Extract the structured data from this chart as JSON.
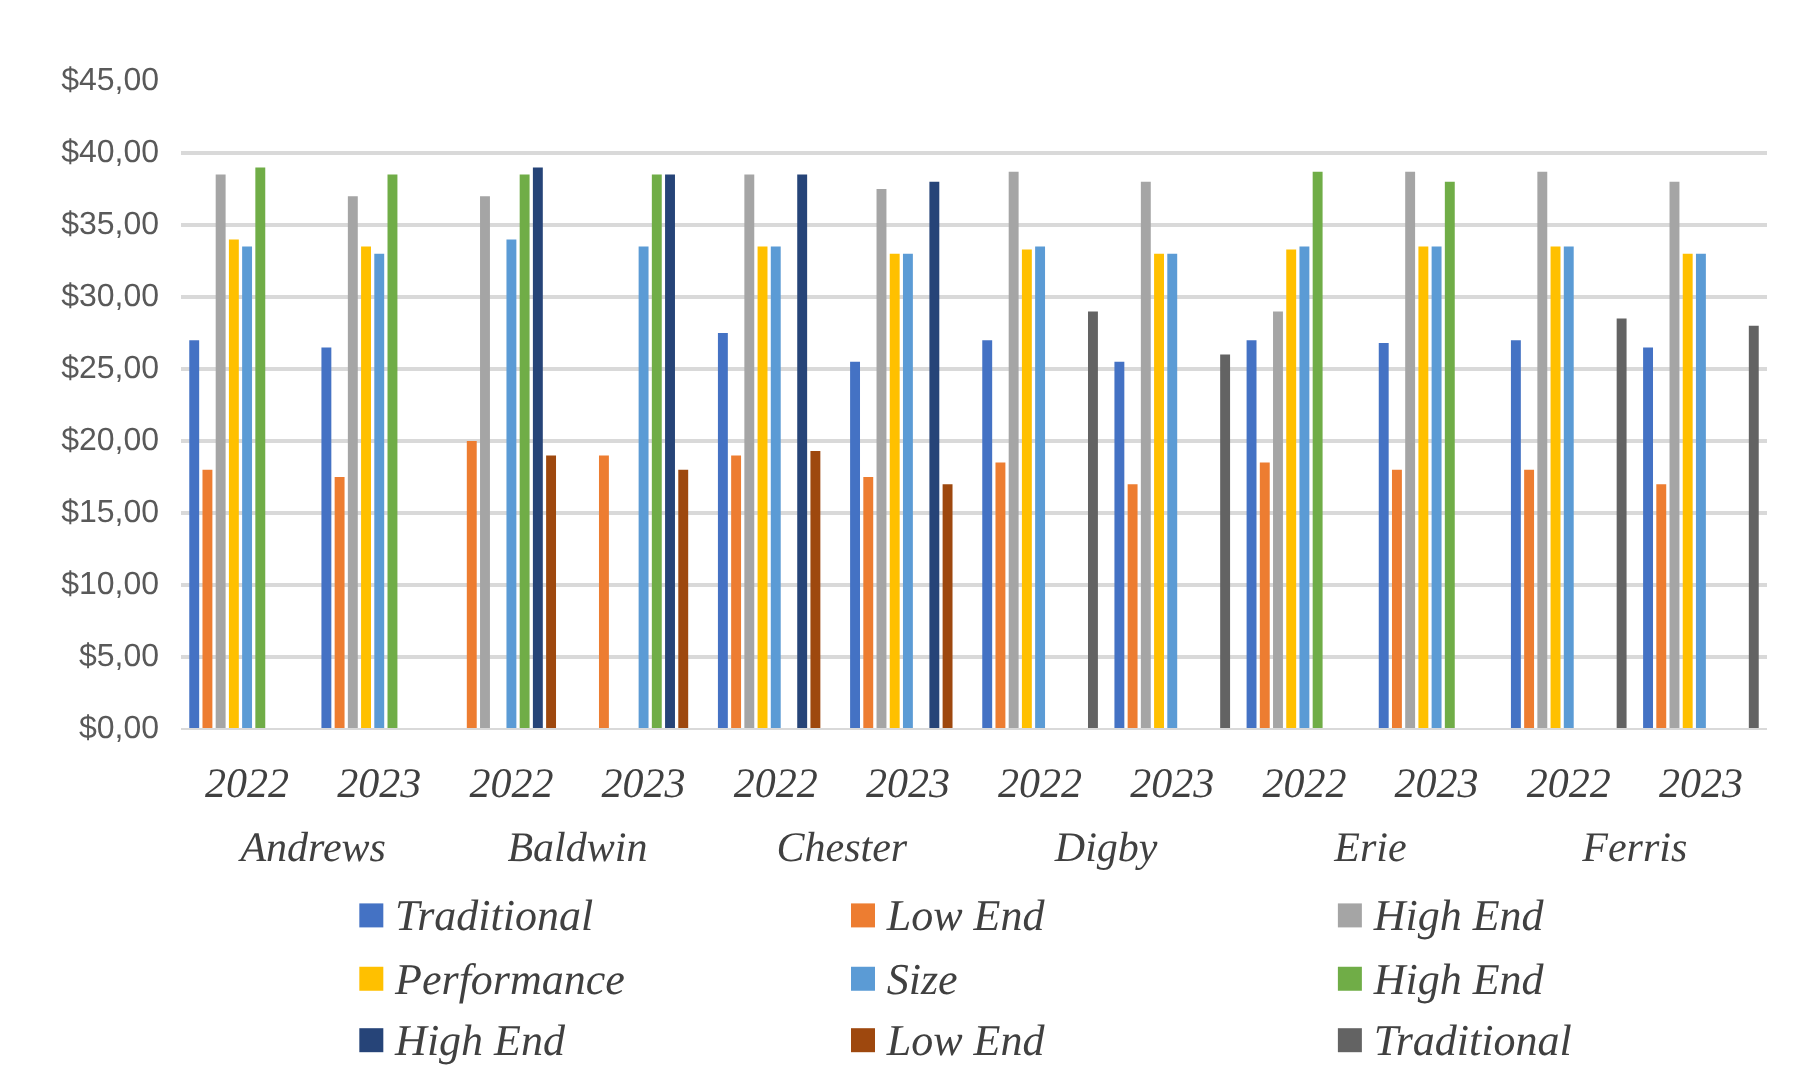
{
  "chart_data": {
    "type": "bar",
    "categories": [
      "2022",
      "2023",
      "2022",
      "2023",
      "2022",
      "2023",
      "2022",
      "2023",
      "2022",
      "2023",
      "2022",
      "2023"
    ],
    "annotations": [
      "Andrews",
      "Baldwin",
      "Chester",
      "Digby",
      "Erie",
      "Ferris"
    ],
    "series": [
      {
        "name": "Traditional",
        "color": "#4472c4",
        "values": [
          27,
          26.5,
          null,
          null,
          27.5,
          25.5,
          27,
          25.5,
          27,
          26.8,
          27,
          26.5
        ]
      },
      {
        "name": "Low End",
        "color": "#ed7d31",
        "values": [
          18,
          17.5,
          20,
          19,
          19,
          17.5,
          18.5,
          17,
          18.5,
          18,
          18,
          17
        ]
      },
      {
        "name": "High End",
        "color": "#a5a5a5",
        "values": [
          38.5,
          37,
          37,
          null,
          38.5,
          37.5,
          38.7,
          38,
          29,
          38.7,
          38.7,
          38
        ]
      },
      {
        "name": "Performance",
        "color": "#ffc000",
        "values": [
          34,
          33.5,
          null,
          null,
          33.5,
          33,
          33.3,
          33,
          33.3,
          33.5,
          33.5,
          33
        ]
      },
      {
        "name": "Size",
        "color": "#5b9bd5",
        "values": [
          33.5,
          33,
          34,
          33.5,
          33.5,
          33,
          33.5,
          33,
          33.5,
          33.5,
          33.5,
          33
        ]
      },
      {
        "name": "High End",
        "color": "#70ad47",
        "values": [
          39,
          38.5,
          38.5,
          38.5,
          null,
          null,
          null,
          null,
          38.7,
          38,
          null,
          null
        ]
      },
      {
        "name": "High End",
        "color": "#264478",
        "values": [
          null,
          null,
          39,
          38.5,
          38.5,
          38,
          null,
          null,
          null,
          null,
          null,
          null
        ]
      },
      {
        "name": "Low End",
        "color": "#9e480e",
        "values": [
          null,
          null,
          19,
          18,
          19.3,
          17,
          null,
          null,
          null,
          null,
          null,
          null
        ]
      },
      {
        "name": "Traditional",
        "color": "#636363",
        "values": [
          null,
          null,
          null,
          null,
          null,
          null,
          29,
          26,
          null,
          null,
          28.5,
          28
        ]
      }
    ],
    "ylim": [
      0,
      45
    ],
    "yticks": [
      {
        "value": 0,
        "label": "$0,00"
      },
      {
        "value": 5,
        "label": "$5,00"
      },
      {
        "value": 10,
        "label": "$10,00"
      },
      {
        "value": 15,
        "label": "$15,00"
      },
      {
        "value": 20,
        "label": "$20,00"
      },
      {
        "value": 25,
        "label": "$25,00"
      },
      {
        "value": 30,
        "label": "$30,00"
      },
      {
        "value": 35,
        "label": "$35,00"
      },
      {
        "value": 40,
        "label": "$40,00"
      },
      {
        "value": 45,
        "label": "$45,00"
      }
    ],
    "grid": "y",
    "legend": "bottom"
  }
}
